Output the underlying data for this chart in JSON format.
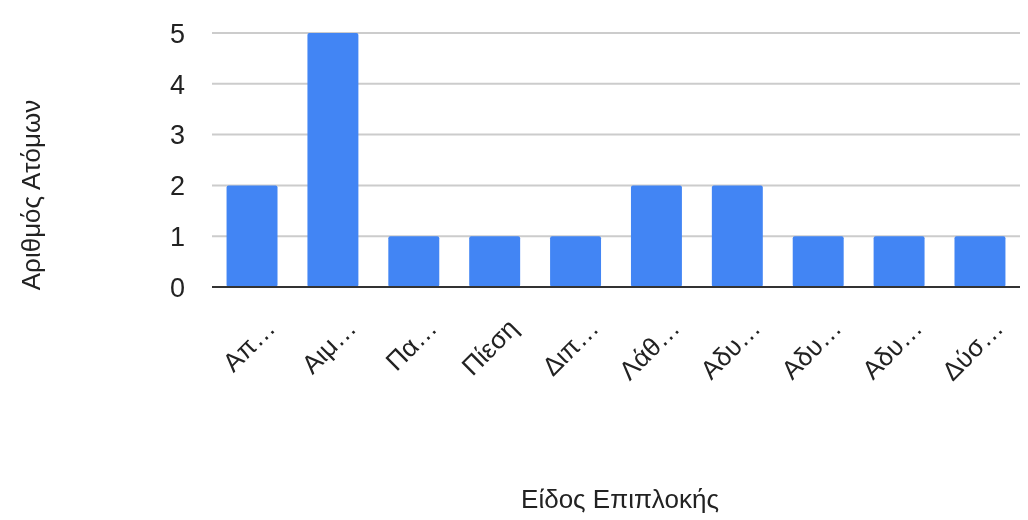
{
  "chart_data": {
    "type": "bar",
    "xlabel": "Είδος Επιπλοκής",
    "ylabel": "Αριθμός Ατόμων",
    "categories": [
      "Απ…",
      "Αιμ…",
      "Πα…",
      "Πίεση",
      "Διπ…",
      "Λάθ…",
      "Αδυ…",
      "Αδυ…",
      "Αδυ…",
      "Δύσ…"
    ],
    "values": [
      2,
      5,
      1,
      1,
      1,
      2,
      2,
      1,
      1,
      1
    ],
    "color": "#4285f4",
    "ylim": [
      0,
      5
    ],
    "yticks": [
      0,
      1,
      2,
      3,
      4,
      5
    ],
    "grid": "y"
  }
}
